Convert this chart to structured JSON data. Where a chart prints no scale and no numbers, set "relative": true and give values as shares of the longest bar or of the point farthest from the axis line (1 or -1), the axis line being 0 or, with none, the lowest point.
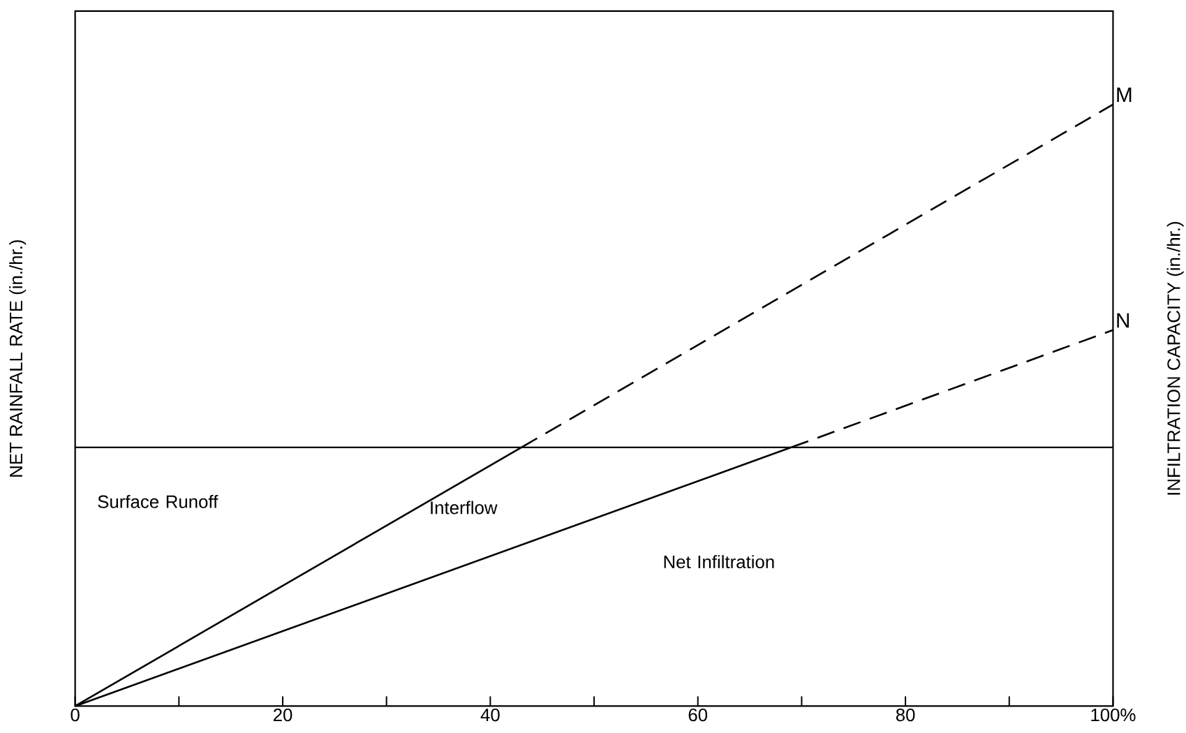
{
  "chart_data": {
    "type": "line",
    "relative": true,
    "xlabel": null,
    "ylabel": "NET RAINFALL RATE (in./hr.)",
    "y2label": "INFILTRATION CAPACITY (in./hr.)",
    "xlim": [
      0,
      100
    ],
    "xticks": [
      0,
      {
        "value": 10,
        "label": null
      },
      20,
      {
        "value": 30,
        "label": null
      },
      40,
      {
        "value": 50,
        "label": null
      },
      60,
      {
        "value": 70,
        "label": null
      },
      80,
      {
        "value": 90,
        "label": null
      },
      {
        "value": 100,
        "label": "100%"
      }
    ],
    "series": [
      {
        "color": "#000000",
        "line_style": "solid",
        "x": [
          0,
          43
        ],
        "values": [
          0,
          0.43
        ]
      },
      {
        "name": "M",
        "color": "#000000",
        "line_style": "dashed",
        "x": [
          43,
          100
        ],
        "values": [
          0.43,
          1
        ]
      },
      {
        "color": "#000000",
        "line_style": "solid",
        "x": [
          0,
          69
        ],
        "values": [
          0,
          0.43
        ]
      },
      {
        "name": "N",
        "color": "#000000",
        "line_style": "dashed",
        "x": [
          69,
          100
        ],
        "values": [
          0.43,
          0.625
        ]
      }
    ],
    "ref_lines": [
      {
        "axis": "y",
        "value": 0.43,
        "color": "#000000",
        "line_style": "solid"
      }
    ],
    "annotations": [
      "Surface Runoff",
      "Interflow",
      "Net Infiltration"
    ]
  }
}
